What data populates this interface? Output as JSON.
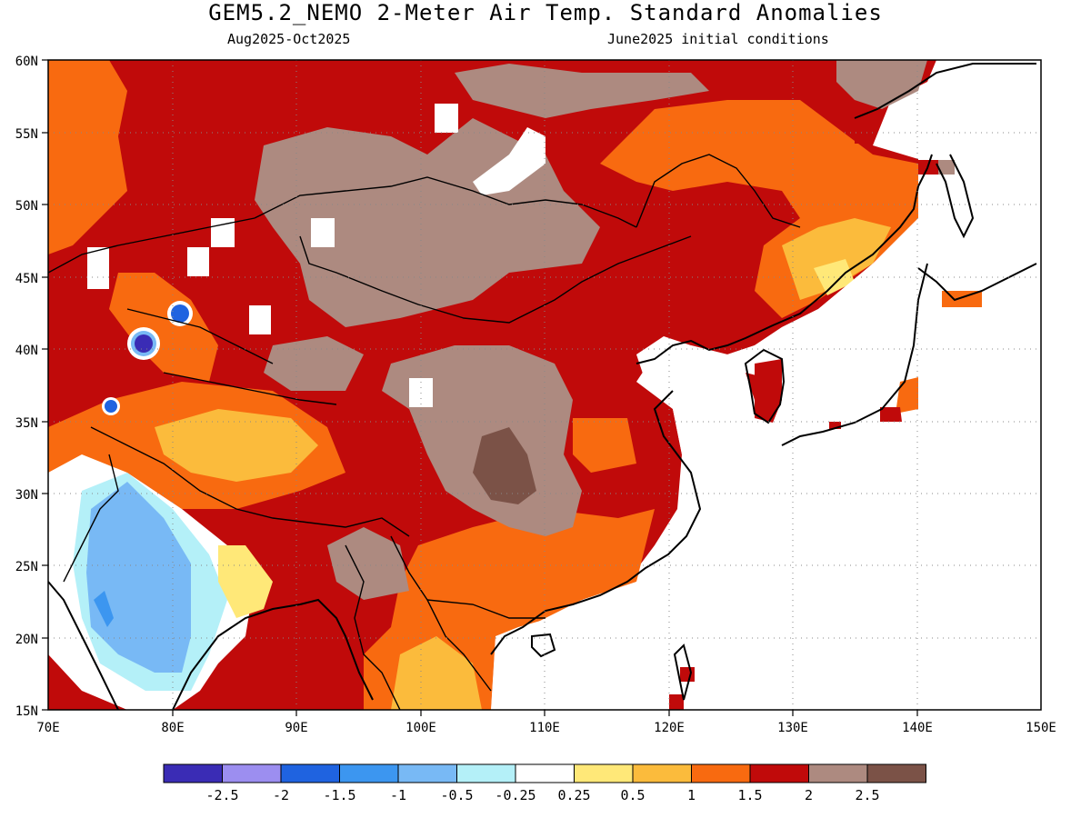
{
  "title": "GEM5.2_NEMO 2-Meter Air Temp. Standard Anomalies",
  "period": "Aug2025-Oct2025",
  "initial_conditions": "June2025 initial conditions",
  "axes": {
    "lat_labels": [
      "60N",
      "55N",
      "50N",
      "45N",
      "40N",
      "35N",
      "30N",
      "25N",
      "20N",
      "15N"
    ],
    "lon_labels": [
      "70E",
      "80E",
      "90E",
      "100E",
      "110E",
      "120E",
      "130E",
      "140E",
      "150E"
    ]
  },
  "colorbar": {
    "colors": [
      "#3a2cb5",
      "#9c8ef0",
      "#1f63e0",
      "#3c96f0",
      "#78b9f5",
      "#b4f0f8",
      "#ffffff",
      "#ffe878",
      "#fbbb3c",
      "#f86a10",
      "#c00a0a",
      "#ad8a80",
      "#7b5247"
    ],
    "labels": [
      "-2.5",
      "-2",
      "-1.5",
      "-1",
      "-0.5",
      "-0.25",
      "0.25",
      "0.5",
      "1",
      "1.5",
      "2",
      "2.5"
    ]
  }
}
